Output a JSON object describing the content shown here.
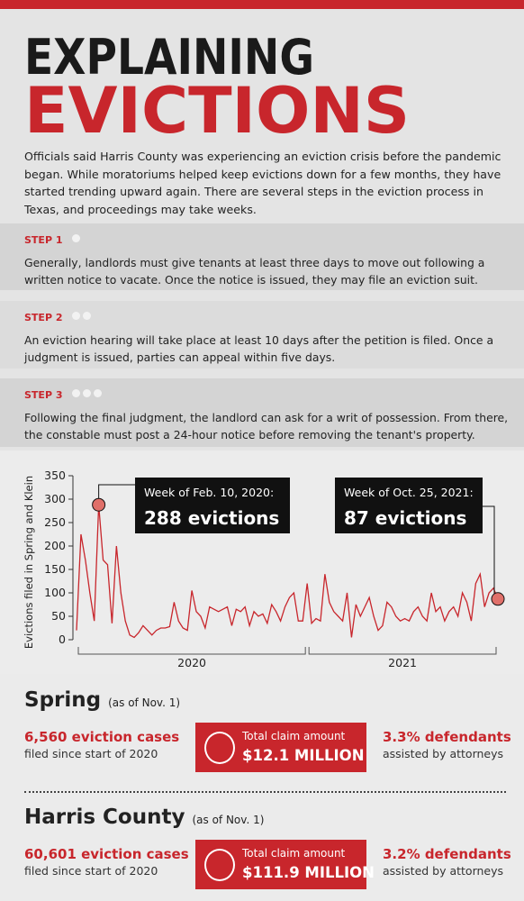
{
  "header": {
    "title_line1": "EXPLAINING",
    "title_line2": "EVICTIONS",
    "intro": "Officials said Harris County was experiencing an eviction crisis before the pandemic began. While moratoriums helped keep evictions down for a few months, they have started trending upward again. There are several steps in the eviction process in Texas, and proceedings may take weeks."
  },
  "steps": [
    {
      "label": "STEP 1",
      "text": "Generally, landlords must give tenants at least three days to move out following a written notice to vacate. Once the notice is issued, they may file an eviction suit."
    },
    {
      "label": "STEP 2",
      "text": "An eviction hearing will take place at least 10 days after the petition is filed. Once a judgment is issued, parties can appeal within five days."
    },
    {
      "label": "STEP 3",
      "text": "Following the final judgment, the landlord can ask for a writ of possession. From there, the constable must post a 24-hour notice before removing the tenant's property."
    }
  ],
  "chart_data": {
    "type": "line",
    "ylabel": "Evictions filed in Spring and Klein",
    "color": "#c8262c",
    "values": [
      20,
      225,
      170,
      100,
      40,
      288,
      170,
      160,
      35,
      200,
      100,
      40,
      10,
      5,
      15,
      30,
      20,
      10,
      20,
      25,
      25,
      28,
      80,
      40,
      25,
      20,
      105,
      60,
      50,
      25,
      70,
      65,
      60,
      65,
      70,
      30,
      65,
      60,
      70,
      30,
      60,
      50,
      55,
      35,
      75,
      60,
      40,
      70,
      90,
      100,
      40,
      40,
      120,
      35,
      45,
      40,
      140,
      80,
      60,
      50,
      40,
      100,
      5,
      75,
      50,
      70,
      90,
      50,
      20,
      30,
      80,
      70,
      50,
      40,
      45,
      40,
      60,
      70,
      50,
      40,
      100,
      60,
      70,
      40,
      60,
      70,
      50,
      100,
      80,
      40,
      120,
      140,
      70,
      100,
      110,
      87
    ],
    "value_labels": [
      null,
      null,
      null,
      null,
      null,
      "288 evictions",
      null,
      null,
      null,
      null,
      null,
      null,
      null,
      null,
      null,
      null,
      null,
      null,
      null,
      null,
      null,
      null,
      null,
      null,
      null,
      null,
      null,
      null,
      null,
      null,
      null,
      null,
      null,
      null,
      null,
      null,
      null,
      null,
      null,
      null,
      null,
      null,
      null,
      null,
      null,
      null,
      null,
      null,
      null,
      null,
      null,
      null,
      null,
      null,
      null,
      null,
      null,
      null,
      null,
      null,
      null,
      null,
      null,
      null,
      null,
      null,
      null,
      null,
      null,
      null,
      null,
      null,
      null,
      null,
      null,
      null,
      null,
      null,
      null,
      null,
      null,
      null,
      null,
      null,
      null,
      null,
      null,
      null,
      null,
      null,
      null,
      null,
      null,
      null,
      null,
      "87 evictions"
    ],
    "point_notes": [
      null,
      null,
      null,
      null,
      null,
      "Week of Feb. 10, 2020:",
      null,
      null,
      null,
      null,
      null,
      null,
      null,
      null,
      null,
      null,
      null,
      null,
      null,
      null,
      null,
      null,
      null,
      null,
      null,
      null,
      null,
      null,
      null,
      null,
      null,
      null,
      null,
      null,
      null,
      null,
      null,
      null,
      null,
      null,
      null,
      null,
      null,
      null,
      null,
      null,
      null,
      null,
      null,
      null,
      null,
      null,
      null,
      null,
      null,
      null,
      null,
      null,
      null,
      null,
      null,
      null,
      null,
      null,
      null,
      null,
      null,
      null,
      null,
      null,
      null,
      null,
      null,
      null,
      null,
      null,
      null,
      null,
      null,
      null,
      null,
      null,
      null,
      null,
      null,
      null,
      null,
      null,
      null,
      null,
      null,
      null,
      null,
      null,
      null,
      "Week of Oct. 25, 2021:"
    ],
    "year_labels": [
      "2020",
      "2021"
    ],
    "ylim": [
      0,
      350
    ],
    "yticks": [
      0,
      50,
      100,
      150,
      200,
      250,
      300,
      350
    ]
  },
  "regions": [
    {
      "name": "Spring",
      "note": "(as of Nov. 1)",
      "cases": "6,560 eviction cases",
      "cases_sub": "filed since start of 2020",
      "claim_label": "Total claim amount",
      "claim": "$12.1 MILLION",
      "defendants": "3.3% defendants",
      "defendants_sub": "assisted by attorneys"
    },
    {
      "name": "Harris County",
      "note": "(as of Nov. 1)",
      "cases": "60,601 eviction cases",
      "cases_sub": "filed since start of 2020",
      "claim_label": "Total claim amount",
      "claim": "$111.9 MILLION",
      "defendants": "3.2% defendants",
      "defendants_sub": "assisted by attorneys"
    }
  ]
}
